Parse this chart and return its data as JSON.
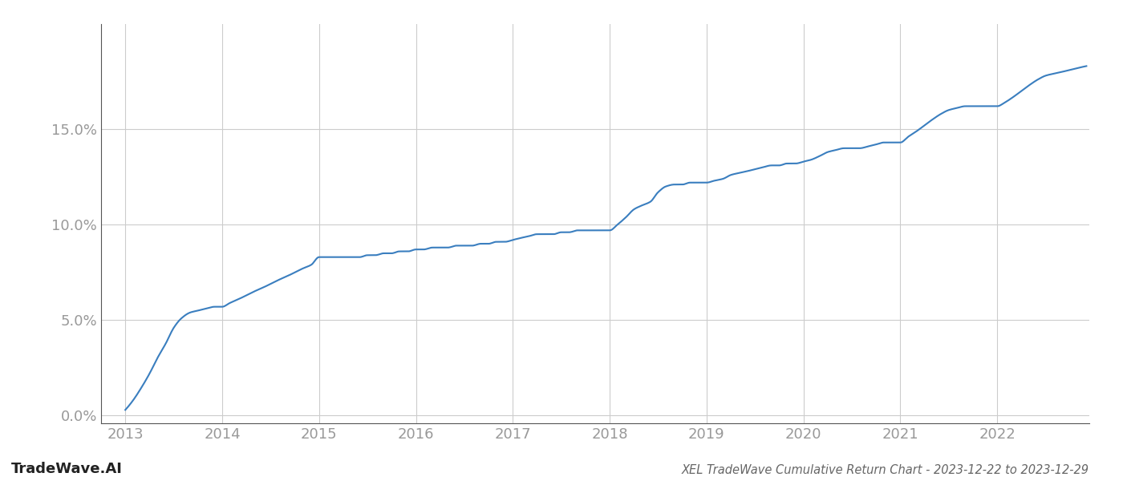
{
  "title": "XEL TradeWave Cumulative Return Chart - 2023-12-22 to 2023-12-29",
  "watermark": "TradeWave.AI",
  "line_color": "#3a7ebf",
  "background_color": "#ffffff",
  "grid_color": "#cccccc",
  "axis_color": "#999999",
  "tick_label_color": "#999999",
  "line_width": 1.5,
  "years": [
    2013.0,
    2013.08,
    2013.17,
    2013.25,
    2013.33,
    2013.42,
    2013.5,
    2013.58,
    2013.67,
    2013.75,
    2013.83,
    2013.92,
    2014.0,
    2014.08,
    2014.17,
    2014.25,
    2014.33,
    2014.42,
    2014.5,
    2014.58,
    2014.67,
    2014.75,
    2014.83,
    2014.92,
    2015.0,
    2015.08,
    2015.17,
    2015.25,
    2015.33,
    2015.42,
    2015.5,
    2015.58,
    2015.67,
    2015.75,
    2015.83,
    2015.92,
    2016.0,
    2016.08,
    2016.17,
    2016.25,
    2016.33,
    2016.42,
    2016.5,
    2016.58,
    2016.67,
    2016.75,
    2016.83,
    2016.92,
    2017.0,
    2017.08,
    2017.17,
    2017.25,
    2017.33,
    2017.42,
    2017.5,
    2017.58,
    2017.67,
    2017.75,
    2017.83,
    2017.92,
    2018.0,
    2018.08,
    2018.17,
    2018.25,
    2018.33,
    2018.42,
    2018.5,
    2018.58,
    2018.67,
    2018.75,
    2018.83,
    2018.92,
    2019.0,
    2019.08,
    2019.17,
    2019.25,
    2019.33,
    2019.42,
    2019.5,
    2019.58,
    2019.67,
    2019.75,
    2019.83,
    2019.92,
    2020.0,
    2020.08,
    2020.17,
    2020.25,
    2020.33,
    2020.42,
    2020.5,
    2020.58,
    2020.67,
    2020.75,
    2020.83,
    2020.92,
    2021.0,
    2021.08,
    2021.17,
    2021.25,
    2021.33,
    2021.42,
    2021.5,
    2021.58,
    2021.67,
    2021.75,
    2021.83,
    2021.92,
    2022.0,
    2022.08,
    2022.17,
    2022.25,
    2022.33,
    2022.42,
    2022.5,
    2022.58,
    2022.67,
    2022.75,
    2022.83,
    2022.92
  ],
  "values": [
    0.003,
    0.008,
    0.015,
    0.022,
    0.03,
    0.038,
    0.046,
    0.051,
    0.054,
    0.055,
    0.056,
    0.057,
    0.057,
    0.059,
    0.061,
    0.063,
    0.065,
    0.067,
    0.069,
    0.071,
    0.073,
    0.075,
    0.077,
    0.079,
    0.083,
    0.083,
    0.083,
    0.083,
    0.083,
    0.083,
    0.084,
    0.084,
    0.085,
    0.085,
    0.086,
    0.086,
    0.087,
    0.087,
    0.088,
    0.088,
    0.088,
    0.089,
    0.089,
    0.089,
    0.09,
    0.09,
    0.091,
    0.091,
    0.092,
    0.093,
    0.094,
    0.095,
    0.095,
    0.095,
    0.096,
    0.096,
    0.097,
    0.097,
    0.097,
    0.097,
    0.097,
    0.1,
    0.104,
    0.108,
    0.11,
    0.112,
    0.117,
    0.12,
    0.121,
    0.121,
    0.122,
    0.122,
    0.122,
    0.123,
    0.124,
    0.126,
    0.127,
    0.128,
    0.129,
    0.13,
    0.131,
    0.131,
    0.132,
    0.132,
    0.133,
    0.134,
    0.136,
    0.138,
    0.139,
    0.14,
    0.14,
    0.14,
    0.141,
    0.142,
    0.143,
    0.143,
    0.143,
    0.146,
    0.149,
    0.152,
    0.155,
    0.158,
    0.16,
    0.161,
    0.162,
    0.162,
    0.162,
    0.162,
    0.162,
    0.164,
    0.167,
    0.17,
    0.173,
    0.176,
    0.178,
    0.179,
    0.18,
    0.181,
    0.182,
    0.183
  ],
  "xlim": [
    2012.75,
    2022.95
  ],
  "ylim": [
    -0.004,
    0.205
  ],
  "yticks": [
    0.0,
    0.05,
    0.1,
    0.15
  ],
  "xticks": [
    2013,
    2014,
    2015,
    2016,
    2017,
    2018,
    2019,
    2020,
    2021,
    2022
  ],
  "title_fontsize": 10.5,
  "tick_fontsize": 13,
  "watermark_fontsize": 13
}
